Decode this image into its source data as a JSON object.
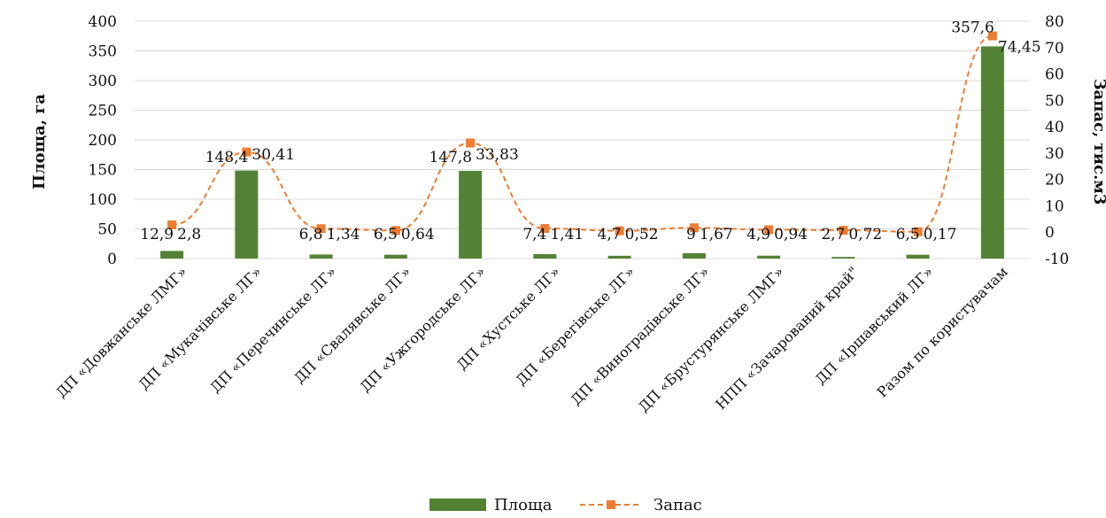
{
  "chart_data": {
    "type": "bar",
    "categories": [
      "ДП «Довжанське ЛМГ»",
      "ДП «Мукачівське ЛГ»",
      "ДП «Перечинське ЛГ»",
      "ДП «Свалявське ЛГ»",
      "ДП «Ужгородське ЛГ»",
      "ДП «Хустське ЛГ»",
      "ДП «Берегівське ЛГ»",
      "ДП «Виноградівське ЛГ»",
      "ДП «Брустурянське ЛМГ»",
      "НПП «Зачарований край\"",
      "ДП «Іршавський ЛГ»",
      "Разом по користувачам"
    ],
    "series": [
      {
        "name": "Площа",
        "type": "bar",
        "axis": "left",
        "color": "#548235",
        "values": [
          12.9,
          148.4,
          6.8,
          6.5,
          147.8,
          7.4,
          4.7,
          9,
          4.9,
          2.7,
          6.5,
          357.6
        ],
        "labels": [
          "12,9",
          "148,4",
          "6,8",
          "6,5",
          "147,8",
          "7,4",
          "4,7",
          "9",
          "4,9",
          "2,7",
          "6,5",
          "357,6"
        ]
      },
      {
        "name": "Запас",
        "type": "line",
        "axis": "right",
        "color": "#ed7d31",
        "style": "dashed",
        "marker": "square",
        "values": [
          2.8,
          30.41,
          1.34,
          0.64,
          33.83,
          1.41,
          0.52,
          1.67,
          0.94,
          0.72,
          0.17,
          74.45
        ],
        "labels": [
          "2,8",
          "30,41",
          "1,34",
          "0,64",
          "33,83",
          "1,41",
          "0,52",
          "1,67",
          "0,94",
          "0,72",
          "0,17",
          "74,45"
        ]
      }
    ],
    "ylabel": "Площа, га",
    "y2label": "Запас, тис.м3",
    "ylim": [
      0,
      400
    ],
    "y2lim": [
      -10,
      80
    ],
    "yticks": [
      "0",
      "50",
      "100",
      "150",
      "200",
      "250",
      "300",
      "350",
      "400"
    ],
    "y2ticks": [
      "-10",
      "0",
      "10",
      "20",
      "30",
      "40",
      "50",
      "60",
      "70",
      "80"
    ],
    "grid": true,
    "legend_position": "bottom"
  }
}
